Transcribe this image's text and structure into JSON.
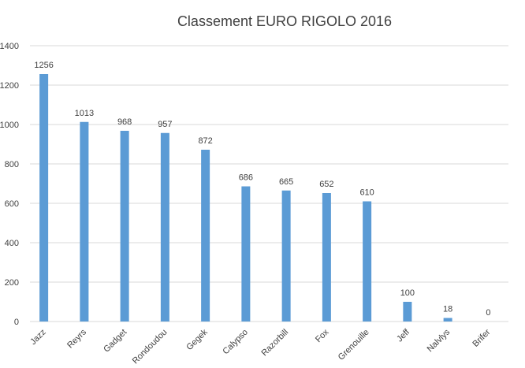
{
  "chart_data": {
    "type": "bar",
    "title": "Classement EURO RIGOLO 2016",
    "xlabel": "",
    "ylabel": "",
    "categories": [
      "Jazz",
      "Reyrs",
      "Gadget",
      "Rondoudou",
      "Gegek",
      "Calypso",
      "Razorbill",
      "Fox",
      "Grenouille",
      "Jeff",
      "Nalvlys",
      "Brifer"
    ],
    "values": [
      1256,
      1013,
      968,
      957,
      872,
      686,
      665,
      652,
      610,
      100,
      18,
      0
    ],
    "data_labels": [
      "1256",
      "1013",
      "968",
      "957",
      "872",
      "686",
      "665",
      "652",
      "610",
      "100",
      "18",
      "0"
    ],
    "ylim": [
      0,
      1400
    ],
    "yticks": [
      0,
      200,
      400,
      600,
      800,
      1000,
      1200,
      1400
    ],
    "grid": true,
    "legend": "none",
    "bar_color": "#5b9bd5",
    "grid_color": "#d9d9d9",
    "text_color": "#404040"
  }
}
